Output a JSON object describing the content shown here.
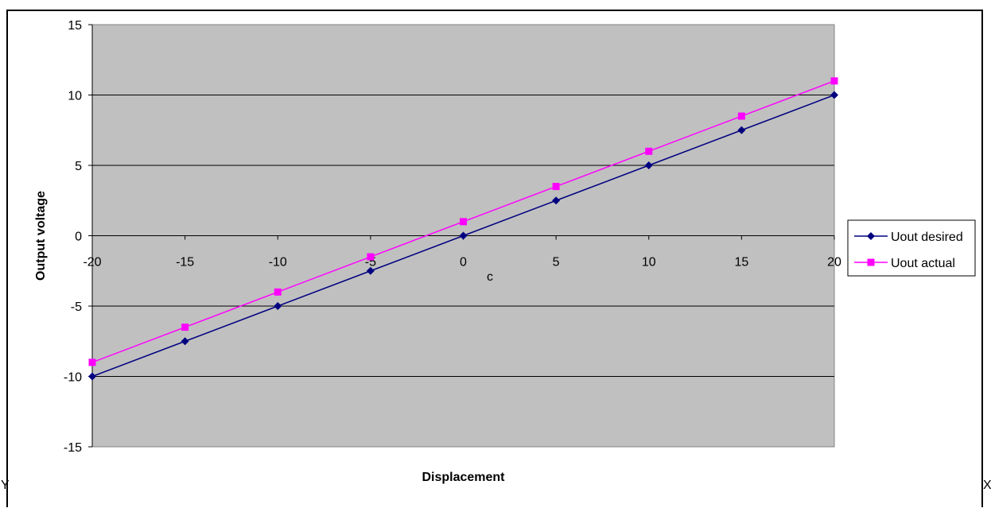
{
  "chart_data": {
    "type": "line",
    "xlabel": "Displacement",
    "ylabel": "Output voltage",
    "xlim": [
      -20,
      20
    ],
    "ylim": [
      -15,
      15
    ],
    "x_ticks": [
      "-20",
      "-15",
      "-10",
      "-5",
      "0",
      "5",
      "10",
      "15",
      "20"
    ],
    "y_ticks": [
      "15",
      "10",
      "5",
      "0",
      "-5",
      "-10",
      "-15"
    ],
    "grid": "horizontal major gridlines",
    "plot_background": "#c0c0c0",
    "legend_position": "right",
    "annotation": "c",
    "x": [
      -20,
      -15,
      -10,
      -5,
      0,
      5,
      10,
      15,
      20
    ],
    "series": [
      {
        "name": "Uout desired",
        "color": "#000080",
        "marker": "diamond",
        "values": [
          -10,
          -7.5,
          -5,
          -2.5,
          0,
          2.5,
          5,
          7.5,
          10
        ]
      },
      {
        "name": "Uout actual",
        "color": "#ff00ff",
        "marker": "square",
        "values": [
          -9,
          -6.5,
          -4,
          -1.5,
          1,
          3.5,
          6,
          8.5,
          11
        ]
      }
    ]
  },
  "edge_text": {
    "left": "Y",
    "right": "X"
  }
}
